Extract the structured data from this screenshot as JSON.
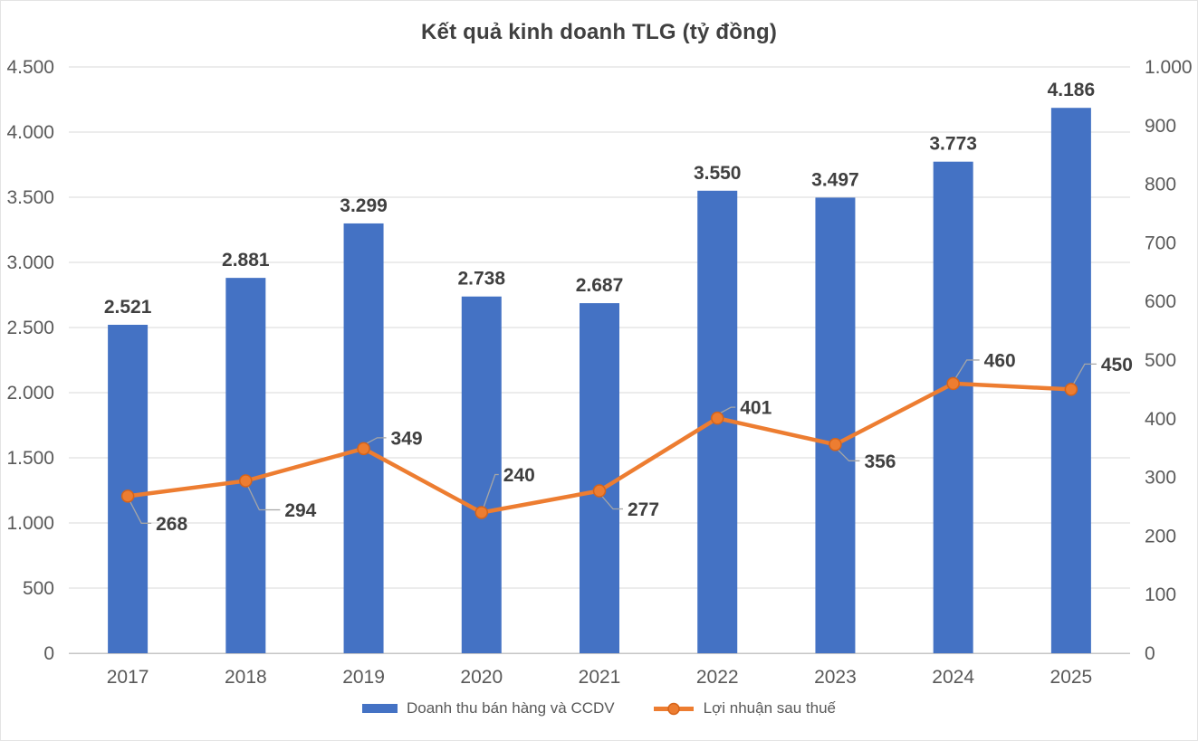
{
  "title": "Kết quả kinh doanh TLG (tỷ đồng)",
  "chart_data": {
    "type": "bar",
    "subtype": "combo-bar-line-dual-axis",
    "title": "Kết quả kinh doanh TLG (tỷ đồng)",
    "categories": [
      "2017",
      "2018",
      "2019",
      "2020",
      "2021",
      "2022",
      "2023",
      "2024",
      "2025"
    ],
    "series": [
      {
        "name": "Doanh thu bán hàng và CCDV",
        "type": "bar",
        "axis": "primary",
        "color": "#4472C4",
        "values": [
          2521,
          2881,
          3299,
          2738,
          2687,
          3550,
          3497,
          3773,
          4186
        ],
        "labels": [
          "2.521",
          "2.881",
          "3.299",
          "2.738",
          "2.687",
          "3.550",
          "3.497",
          "3.773",
          "4.186"
        ]
      },
      {
        "name": "Lợi nhuận sau thuế",
        "type": "line",
        "axis": "secondary",
        "color": "#ED7D31",
        "marker_border": "#D6641A",
        "values": [
          268,
          294,
          349,
          240,
          277,
          401,
          356,
          460,
          450
        ],
        "labels": [
          "268",
          "294",
          "349",
          "240",
          "277",
          "401",
          "356",
          "460",
          "450"
        ],
        "label_offsets": [
          [
            31,
            30
          ],
          [
            43,
            32
          ],
          [
            30,
            -12
          ],
          [
            24,
            -42
          ],
          [
            31,
            20
          ],
          [
            25,
            -12
          ],
          [
            32,
            18
          ],
          [
            34,
            -26
          ],
          [
            33,
            -28
          ]
        ]
      }
    ],
    "axes": {
      "primary_y": {
        "min": 0,
        "max": 4500,
        "step": 500,
        "tick_values": [
          0,
          500,
          1000,
          1500,
          2000,
          2500,
          3000,
          3500,
          4000,
          4500
        ],
        "tick_labels": [
          "0",
          "500",
          "1.000",
          "1.500",
          "2.000",
          "2.500",
          "3.000",
          "3.500",
          "4.000",
          "4.500"
        ]
      },
      "secondary_y": {
        "min": 0,
        "max": 1000,
        "step": 100,
        "tick_values": [
          0,
          100,
          200,
          300,
          400,
          500,
          600,
          700,
          800,
          900,
          1000
        ],
        "tick_labels": [
          "0",
          "100",
          "200",
          "300",
          "400",
          "500",
          "600",
          "700",
          "800",
          "900",
          "1.000"
        ]
      }
    },
    "grid": true,
    "legend_position": "bottom",
    "colors": {
      "grid": "#D9D9D9",
      "axis_line": "#C6C6C6",
      "tick_text": "#595959",
      "data_label": "#404040",
      "leader": "#A6A6A6",
      "title": "#404040",
      "background": "#FFFFFF"
    }
  }
}
